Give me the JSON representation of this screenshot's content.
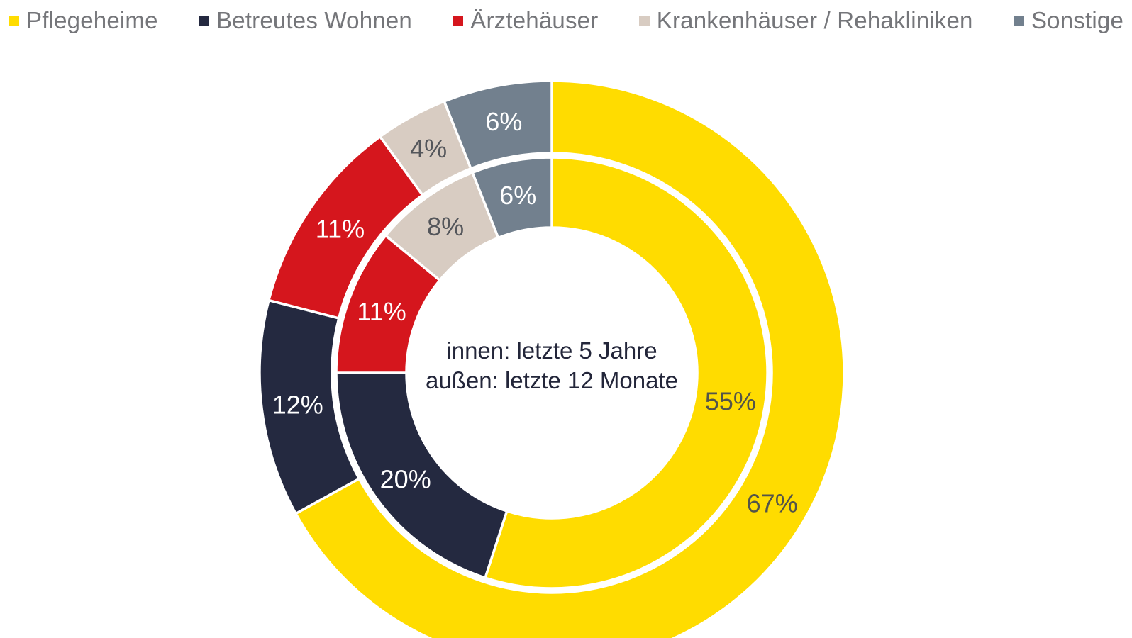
{
  "page": {
    "background": "#ffffff"
  },
  "legend": {
    "position": "top",
    "text_color": "#75767a",
    "items": [
      {
        "label": "Pflegeheime",
        "color": "#FFDC00"
      },
      {
        "label": "Betreutes Wohnen",
        "color": "#242940"
      },
      {
        "label": "Ärztehäuser",
        "color": "#D5161D"
      },
      {
        "label": "Krankenhäuser / Rehakliniken",
        "color": "#D8CCC2"
      },
      {
        "label": "Sonstige",
        "color": "#72808E"
      }
    ]
  },
  "chart_data": {
    "type": "pie",
    "variant": "nested-donut",
    "direction": "clockwise",
    "start_angle_deg": 0,
    "unit": "%",
    "categories": [
      "Pflegeheime",
      "Betreutes Wohnen",
      "Ärztehäuser",
      "Krankenhäuser / Rehakliniken",
      "Sonstige"
    ],
    "colors": [
      "#FFDC00",
      "#242940",
      "#D5161D",
      "#D8CCC2",
      "#72808E"
    ],
    "label_colors": [
      "#53544A",
      "#FFFFFF",
      "#FFFFFF",
      "#54565B",
      "#FFFFFF"
    ],
    "series": [
      {
        "name": "letzte 5 Jahre",
        "ring": "inner",
        "values": [
          55,
          20,
          11,
          8,
          6
        ]
      },
      {
        "name": "letzte 12 Monate",
        "ring": "outer",
        "values": [
          67,
          12,
          11,
          4,
          6
        ]
      }
    ],
    "center_text": [
      "innen: letzte 5 Jahre",
      "außen: letzte 12 Monate"
    ],
    "center_text_color": "#23263a",
    "separator_color": "#ffffff"
  }
}
